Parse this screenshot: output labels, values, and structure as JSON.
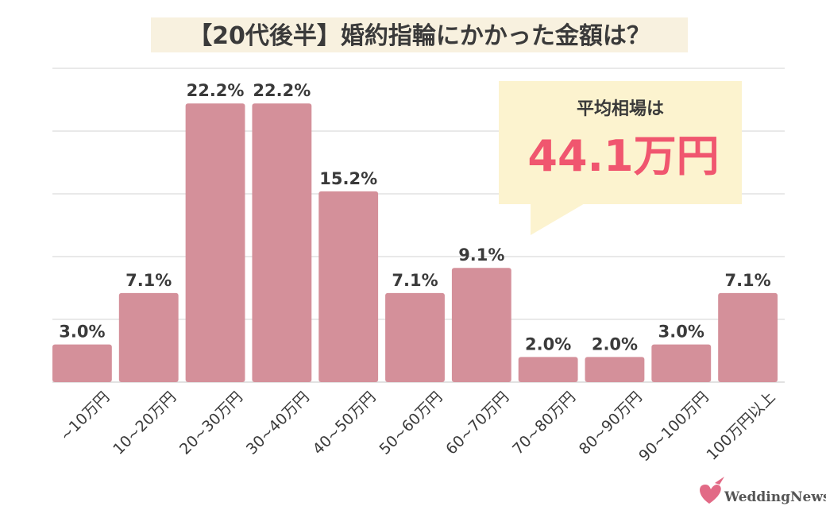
{
  "chart_data": {
    "type": "bar",
    "title": "【20代後半】婚約指輪にかかった金額は？",
    "categories": [
      "~10万円",
      "10~20万円",
      "20~30万円",
      "30~40万円",
      "40~50万円",
      "50~60万円",
      "60~70万円",
      "70~80万円",
      "80~90万円",
      "90~100万円",
      "100万円以上"
    ],
    "values": [
      3.0,
      7.1,
      22.2,
      22.2,
      15.2,
      7.1,
      9.1,
      2.0,
      2.0,
      3.0,
      7.1
    ],
    "value_labels": [
      "3.0%",
      "7.1%",
      "22.2%",
      "22.2%",
      "15.2%",
      "7.1%",
      "9.1%",
      "2.0%",
      "2.0%",
      "3.0%",
      "7.1%"
    ],
    "xlabel": "",
    "ylabel": "",
    "ylim": [
      0,
      25
    ],
    "grid": true,
    "bar_color": "#d4909a",
    "annotation": {
      "heading": "平均相場は",
      "value": "44.1万円",
      "box_color": "#fcf3cf",
      "value_color": "#f0566f"
    }
  },
  "colors": {
    "title_highlight": "#f8f1df",
    "gridline": "#e2e2e2",
    "text": "#3a3a3a"
  },
  "brand": {
    "name": "WeddingNews",
    "icon": "dove-heart-icon"
  }
}
